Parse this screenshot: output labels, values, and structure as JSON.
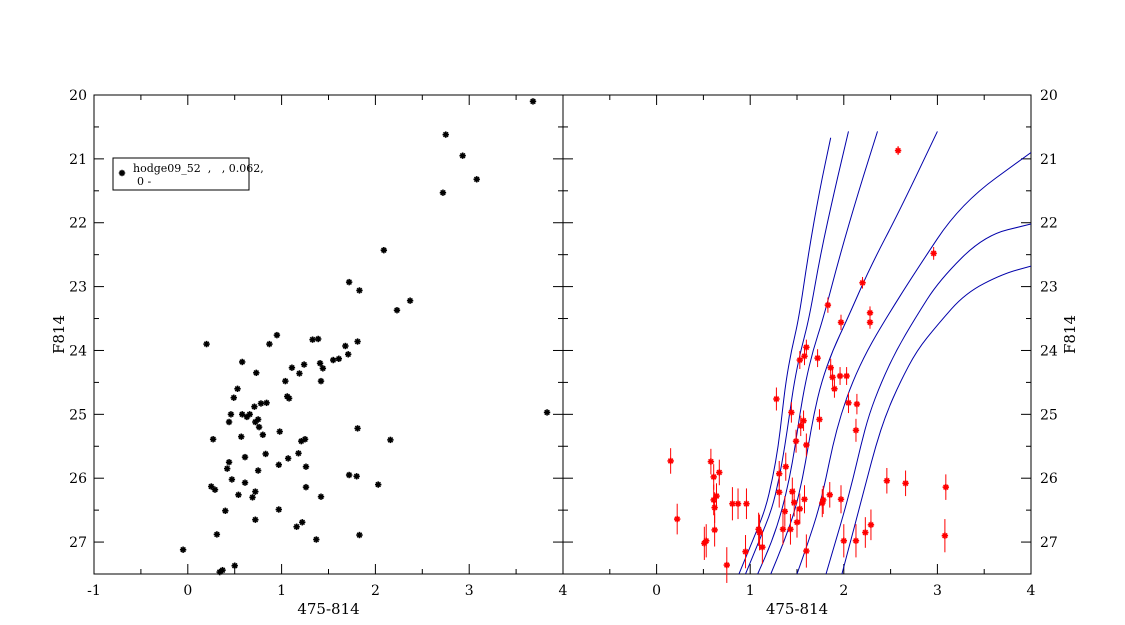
{
  "chart_data": [
    {
      "type": "scatter",
      "panel": "left",
      "xlabel": "475-814",
      "ylabel": "F814",
      "xlim": [
        -1,
        4
      ],
      "ylim": [
        27.5,
        20
      ],
      "y_inverted": true,
      "x_ticks": [
        "-1",
        "0",
        "1",
        "2",
        "3",
        "4"
      ],
      "y_ticks": [
        "20",
        "21",
        "22",
        "23",
        "24",
        "25",
        "26",
        "27"
      ],
      "legend_position": "top-left",
      "marker_color": "#000000",
      "series": [
        {
          "name": "hodge09_52  ,   , 0.062,",
          "name_line2": "0 -",
          "x": [
            3.68,
            2.75,
            2.93,
            3.08,
            2.72,
            2.09,
            1.72,
            1.83,
            2.37,
            2.23,
            0.2,
            0.95,
            0.87,
            0.58,
            0.73,
            1.11,
            1.24,
            1.19,
            1.33,
            1.39,
            1.41,
            1.68,
            1.61,
            1.55,
            1.81,
            1.71,
            1.44,
            1.42,
            1.04,
            1.08,
            1.06,
            0.53,
            0.49,
            0.71,
            0.78,
            0.84,
            0.58,
            0.46,
            0.44,
            0.63,
            0.66,
            0.72,
            0.75,
            0.27,
            0.76,
            0.8,
            0.57,
            1.21,
            0.98,
            1.81,
            2.16,
            1.25,
            3.83,
            1.18,
            0.83,
            0.61,
            1.07,
            0.44,
            1.26,
            0.97,
            0.42,
            0.75,
            0.25,
            1.26,
            0.47,
            0.61,
            1.72,
            1.8,
            2.03,
            0.72,
            0.29,
            0.54,
            0.69,
            0.97,
            1.42,
            1.16,
            1.22,
            0.72,
            1.83,
            0.4,
            1.37,
            -0.05,
            0.31,
            0.5,
            0.37,
            0.34
          ],
          "y": [
            20.1,
            20.62,
            20.95,
            21.32,
            21.53,
            22.43,
            22.93,
            23.06,
            23.22,
            23.37,
            23.9,
            23.76,
            23.9,
            24.18,
            24.35,
            24.27,
            24.22,
            24.36,
            23.83,
            23.82,
            24.2,
            23.93,
            24.13,
            24.15,
            23.86,
            24.06,
            24.28,
            24.48,
            24.48,
            24.75,
            24.72,
            24.6,
            24.74,
            24.88,
            24.83,
            24.82,
            25.0,
            25.0,
            25.12,
            25.04,
            25.0,
            25.12,
            25.08,
            25.39,
            25.2,
            25.32,
            25.35,
            25.42,
            25.27,
            25.22,
            25.4,
            25.39,
            24.97,
            25.61,
            25.62,
            25.67,
            25.69,
            25.75,
            25.82,
            25.79,
            25.85,
            25.88,
            26.13,
            26.14,
            26.02,
            26.07,
            25.95,
            25.97,
            26.1,
            26.21,
            26.18,
            26.26,
            26.3,
            26.49,
            26.29,
            26.76,
            26.69,
            26.65,
            26.89,
            26.51,
            26.96,
            27.12,
            26.88,
            27.37,
            27.44,
            27.47
          ]
        }
      ]
    },
    {
      "type": "scatter+line",
      "panel": "right",
      "xlabel": "475-814",
      "ylabel": "F814",
      "xlim": [
        -1,
        4
      ],
      "ylim": [
        27.5,
        20
      ],
      "y_inverted": true,
      "x_ticks": [
        "0",
        "1",
        "2",
        "3",
        "4"
      ],
      "y_ticks": [
        "20",
        "21",
        "22",
        "23",
        "24",
        "25",
        "26",
        "27"
      ],
      "marker_color": "#ff0000",
      "line_color": "#0000aa",
      "points": {
        "x": [
          2.58,
          2.96,
          2.2,
          2.28,
          2.28,
          1.83,
          1.97,
          1.6,
          1.58,
          1.53,
          1.72,
          1.88,
          1.96,
          2.03,
          1.86,
          1.9,
          2.05,
          1.28,
          1.44,
          1.57,
          1.54,
          1.74,
          1.49,
          2.13,
          2.14,
          1.6,
          0.15,
          0.58,
          0.67,
          0.61,
          0.64,
          1.38,
          1.31,
          2.46,
          2.66,
          3.09,
          1.45,
          0.61,
          0.62,
          0.96,
          0.87,
          1.85,
          1.53,
          1.47,
          1.58,
          1.78,
          1.5,
          1.35,
          1.43,
          0.22,
          1.37,
          1.77,
          1.97,
          2.29,
          2.23,
          0.62,
          0.53,
          0.51,
          1.09,
          2.13,
          1.13,
          2.0,
          1.6,
          0.95,
          3.08,
          0.75,
          1.1,
          0.81,
          1.31
        ],
        "y": [
          20.87,
          22.48,
          22.94,
          23.41,
          23.56,
          23.29,
          23.56,
          23.95,
          24.09,
          24.15,
          24.12,
          24.42,
          24.4,
          24.4,
          24.27,
          24.6,
          24.82,
          24.76,
          24.97,
          25.1,
          25.18,
          25.08,
          25.42,
          25.25,
          24.84,
          25.48,
          25.73,
          25.74,
          25.91,
          25.98,
          26.28,
          25.82,
          25.93,
          26.04,
          26.08,
          26.14,
          26.21,
          26.34,
          26.46,
          26.4,
          26.4,
          26.26,
          26.48,
          26.38,
          26.33,
          26.34,
          26.69,
          26.8,
          26.8,
          26.64,
          26.52,
          26.39,
          26.33,
          26.73,
          26.85,
          26.81,
          26.98,
          27.02,
          26.8,
          26.98,
          27.08,
          26.98,
          27.14,
          27.15,
          26.9,
          27.36,
          26.85,
          26.4,
          26.22
        ],
        "errors_y": [
          0.07,
          0.1,
          0.09,
          0.1,
          0.1,
          0.12,
          0.12,
          0.12,
          0.14,
          0.14,
          0.14,
          0.14,
          0.14,
          0.14,
          0.14,
          0.14,
          0.16,
          0.18,
          0.16,
          0.16,
          0.16,
          0.16,
          0.18,
          0.18,
          0.16,
          0.18,
          0.2,
          0.2,
          0.2,
          0.2,
          0.2,
          0.22,
          0.2,
          0.2,
          0.2,
          0.2,
          0.22,
          0.24,
          0.24,
          0.24,
          0.24,
          0.2,
          0.24,
          0.22,
          0.22,
          0.22,
          0.24,
          0.24,
          0.24,
          0.24,
          0.24,
          0.22,
          0.22,
          0.24,
          0.24,
          0.26,
          0.26,
          0.26,
          0.26,
          0.26,
          0.26,
          0.26,
          0.26,
          0.26,
          0.26,
          0.28,
          0.28,
          0.26,
          0.24
        ]
      },
      "isochrones": [
        {
          "x": [
            0.88,
            1.02,
            1.16,
            1.24,
            1.3,
            1.34,
            1.38,
            1.44,
            1.52,
            1.62,
            1.74,
            1.86
          ],
          "y": [
            27.5,
            27.0,
            26.5,
            26.0,
            25.5,
            25.0,
            24.5,
            24.0,
            23.5,
            22.5,
            21.5,
            20.67
          ]
        },
        {
          "x": [
            0.95,
            1.09,
            1.23,
            1.31,
            1.37,
            1.42,
            1.47,
            1.54,
            1.63,
            1.75,
            1.9,
            2.05
          ],
          "y": [
            27.5,
            27.0,
            26.5,
            26.0,
            25.5,
            25.0,
            24.5,
            24.0,
            23.5,
            22.5,
            21.5,
            20.57
          ]
        },
        {
          "x": [
            1.08,
            1.23,
            1.34,
            1.42,
            1.48,
            1.53,
            1.59,
            1.67,
            1.78,
            1.96,
            2.16,
            2.36
          ],
          "y": [
            27.5,
            27.0,
            26.5,
            26.0,
            25.5,
            25.0,
            24.5,
            24.0,
            23.5,
            22.5,
            21.5,
            20.57
          ]
        },
        {
          "x": [
            1.22,
            1.36,
            1.48,
            1.56,
            1.62,
            1.68,
            1.76,
            1.88,
            2.04,
            2.28,
            2.6,
            3.0
          ],
          "y": [
            27.5,
            27.0,
            26.5,
            26.0,
            25.5,
            25.0,
            24.5,
            24.0,
            23.5,
            22.7,
            21.8,
            20.57
          ]
        },
        {
          "x": [
            1.5,
            1.62,
            1.73,
            1.81,
            1.88,
            1.97,
            2.09,
            2.25,
            2.45,
            2.75,
            3.25,
            4.0
          ],
          "y": [
            27.5,
            27.0,
            26.5,
            26.0,
            25.5,
            25.0,
            24.5,
            24.0,
            23.5,
            22.8,
            21.7,
            20.9
          ]
        },
        {
          "x": [
            1.81,
            1.91,
            2.01,
            2.1,
            2.18,
            2.27,
            2.4,
            2.56,
            2.76,
            3.02,
            3.5,
            4.0
          ],
          "y": [
            27.5,
            27.0,
            26.5,
            26.0,
            25.5,
            25.0,
            24.5,
            24.0,
            23.5,
            22.9,
            22.2,
            22.02
          ]
        },
        {
          "x": [
            1.98,
            2.07,
            2.16,
            2.25,
            2.34,
            2.45,
            2.6,
            2.78,
            3.0,
            3.3,
            3.7,
            4.0
          ],
          "y": [
            27.5,
            27.0,
            26.5,
            26.0,
            25.5,
            25.0,
            24.5,
            24.0,
            23.6,
            23.1,
            22.8,
            22.68
          ]
        }
      ]
    }
  ]
}
